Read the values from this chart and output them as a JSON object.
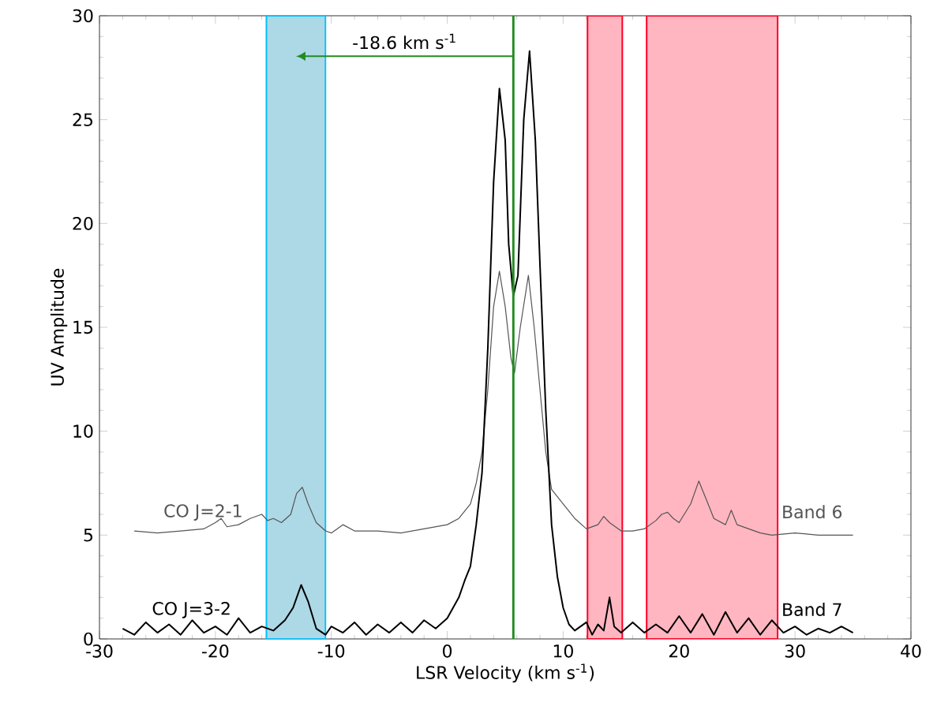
{
  "chart_data": {
    "type": "line",
    "xlabel": "LSR Velocity (km s$^{-1}$)",
    "ylabel": "UV Amplitude",
    "xlim": [
      -30,
      40
    ],
    "xticks": [
      -30,
      -20,
      -10,
      0,
      10,
      20,
      30,
      40
    ],
    "ylim": [
      0,
      30
    ],
    "yticks": [
      0,
      5,
      10,
      15,
      20,
      25,
      30
    ],
    "grid": false,
    "marker": "none",
    "line_style": "solid",
    "series": [
      {
        "name": "CO J=2-1",
        "color": "#555555",
        "x": [
          -27,
          -25,
          -23,
          -21,
          -20,
          -19.5,
          -19,
          -18,
          -17,
          -16,
          -15.5,
          -15,
          -14.3,
          -13.5,
          -13,
          -12.5,
          -12,
          -11.3,
          -10.5,
          -10,
          -9,
          -8,
          -6,
          -4,
          -2,
          0,
          1,
          2,
          2.5,
          3,
          3.5,
          4,
          4.5,
          5,
          5.5,
          5.8,
          6.3,
          7,
          7.5,
          8,
          8.5,
          9,
          10,
          11,
          12,
          13,
          13.5,
          14,
          15,
          16,
          17,
          18,
          18.5,
          19,
          19.5,
          20,
          21,
          21.7,
          22.5,
          23,
          24,
          24.5,
          25,
          26,
          27,
          28,
          30,
          32,
          35
        ],
        "values": [
          5.2,
          5.1,
          5.2,
          5.3,
          5.6,
          5.8,
          5.4,
          5.5,
          5.8,
          6.0,
          5.7,
          5.8,
          5.6,
          6.0,
          7.0,
          7.3,
          6.5,
          5.6,
          5.2,
          5.1,
          5.5,
          5.2,
          5.2,
          5.1,
          5.3,
          5.5,
          5.8,
          6.5,
          7.5,
          9,
          12,
          16,
          17.7,
          16,
          13.5,
          12.8,
          15,
          17.5,
          15,
          12,
          9,
          7.2,
          6.5,
          5.8,
          5.3,
          5.5,
          5.9,
          5.6,
          5.2,
          5.2,
          5.3,
          5.7,
          6.0,
          6.1,
          5.8,
          5.6,
          6.5,
          7.6,
          6.5,
          5.8,
          5.5,
          6.2,
          5.5,
          5.3,
          5.1,
          5.0,
          5.1,
          5.0,
          5.0
        ]
      },
      {
        "name": "CO J=3-2",
        "color": "#000000",
        "x": [
          -28,
          -27,
          -26,
          -25,
          -24,
          -23,
          -22,
          -21,
          -20,
          -19,
          -18,
          -17,
          -16,
          -15,
          -14,
          -13.3,
          -12.6,
          -12,
          -11.3,
          -10.5,
          -10,
          -9,
          -8,
          -7,
          -6,
          -5,
          -4,
          -3,
          -2,
          -1,
          0,
          0.5,
          1,
          1.5,
          2,
          2.5,
          3,
          3.5,
          4,
          4.5,
          5,
          5.3,
          5.7,
          6.1,
          6.6,
          7.1,
          7.6,
          8,
          8.5,
          9,
          9.5,
          10,
          10.5,
          11,
          12,
          12.5,
          13,
          13.5,
          14,
          14.4,
          15,
          16,
          17,
          18,
          19,
          20,
          21,
          22,
          23,
          24,
          25,
          26,
          27,
          28,
          29,
          30,
          31,
          32,
          33,
          34,
          35
        ],
        "values": [
          0.5,
          0.2,
          0.8,
          0.3,
          0.7,
          0.2,
          0.9,
          0.3,
          0.6,
          0.2,
          1.0,
          0.3,
          0.6,
          0.4,
          0.9,
          1.5,
          2.6,
          1.8,
          0.5,
          0.2,
          0.6,
          0.3,
          0.8,
          0.2,
          0.7,
          0.3,
          0.8,
          0.3,
          0.9,
          0.5,
          1.0,
          1.5,
          2.0,
          2.8,
          3.5,
          5.5,
          8,
          14,
          22,
          26.5,
          24,
          19,
          16.5,
          17.5,
          25,
          28.3,
          24,
          18,
          11,
          5.5,
          3,
          1.5,
          0.7,
          0.4,
          0.8,
          0.2,
          0.7,
          0.4,
          2.0,
          0.6,
          0.3,
          0.8,
          0.3,
          0.7,
          0.3,
          1.1,
          0.3,
          1.2,
          0.2,
          1.3,
          0.3,
          1.0,
          0.2,
          0.9,
          0.3,
          0.6,
          0.2,
          0.5,
          0.3,
          0.6,
          0.3
        ]
      }
    ],
    "ref_lines": [
      {
        "axis": "x",
        "value": 5.7,
        "color": "#228b22"
      }
    ],
    "bands": [
      {
        "axis": "x",
        "from": -15.6,
        "to": -10.5,
        "color": "#add8e6"
      },
      {
        "axis": "x",
        "from": 12.1,
        "to": 15.1,
        "color": "#ffb6c1"
      },
      {
        "axis": "x",
        "from": 17.2,
        "to": 28.5,
        "color": "#ffb6c1"
      }
    ],
    "annotations": [
      "-18.6 km s$^{-1}$",
      "Band 6",
      "Band 7"
    ]
  }
}
